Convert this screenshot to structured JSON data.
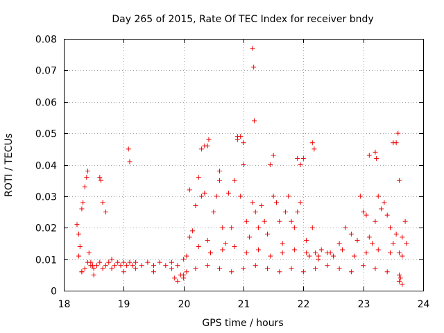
{
  "chart_data": {
    "type": "scatter",
    "title": "Day 265 of 2015, Rate Of TEC Index for receiver bndy",
    "xlabel": "GPS time / hours",
    "ylabel": "ROTI / TECUs",
    "xlim": [
      18,
      24
    ],
    "ylim": [
      0,
      0.08
    ],
    "xticks": [
      18,
      19,
      20,
      21,
      22,
      23,
      24
    ],
    "xtick_labels": [
      "18",
      "19",
      "20",
      "21",
      "22",
      "23",
      "24"
    ],
    "yticks": [
      0,
      0.01,
      0.02,
      0.03,
      0.04,
      0.05,
      0.06,
      0.07,
      0.08
    ],
    "ytick_labels": [
      "0",
      "0.01",
      "0.02",
      "0.03",
      "0.04",
      "0.05",
      "0.06",
      "0.07",
      "0.08"
    ],
    "grid": true,
    "marker": "plus",
    "color": "#ee0000",
    "series": [
      {
        "name": "ROTI",
        "x": [
          18.22,
          18.25,
          18.27,
          18.3,
          18.32,
          18.35,
          18.38,
          18.4,
          18.42,
          18.45,
          18.48,
          18.5,
          18.55,
          18.6,
          18.65,
          18.7,
          18.75,
          18.8,
          18.85,
          18.9,
          18.95,
          19.0,
          19.05,
          19.1,
          19.15,
          19.2,
          19.3,
          19.4,
          19.5,
          19.6,
          19.7,
          19.8,
          19.9,
          20.0,
          20.05,
          20.1,
          20.15,
          20.2,
          20.25,
          20.3,
          20.35,
          20.4,
          20.45,
          20.5,
          20.55,
          20.6,
          20.65,
          20.7,
          20.75,
          20.8,
          20.85,
          20.9,
          20.95,
          21.0,
          21.05,
          21.1,
          21.15,
          21.2,
          21.25,
          21.3,
          21.35,
          21.4,
          21.45,
          21.5,
          21.55,
          21.6,
          21.65,
          21.7,
          21.75,
          21.8,
          21.85,
          21.9,
          21.95,
          22.0,
          22.05,
          22.1,
          22.15,
          22.2,
          22.25,
          22.3,
          22.4,
          22.5,
          22.6,
          22.7,
          22.8,
          22.9,
          22.95,
          23.0,
          23.05,
          23.1,
          23.15,
          23.2,
          23.25,
          23.3,
          23.35,
          23.4,
          23.45,
          23.5,
          23.55,
          23.6,
          23.65,
          23.7,
          23.72,
          18.25,
          18.3,
          18.35,
          18.4,
          18.45,
          18.6,
          18.62,
          18.65,
          18.7,
          19.08,
          19.1,
          20.1,
          20.3,
          20.35,
          20.4,
          20.42,
          20.6,
          20.9,
          20.95,
          21.0,
          21.15,
          21.17,
          21.18,
          21.5,
          21.9,
          21.95,
          22.15,
          22.18,
          23.1,
          23.2,
          23.22,
          23.5,
          23.55,
          23.58,
          23.6,
          18.3,
          18.5,
          18.8,
          19.0,
          19.2,
          19.5,
          19.8,
          20.0,
          20.2,
          20.4,
          20.6,
          20.8,
          21.0,
          21.2,
          21.4,
          21.6,
          21.8,
          22.0,
          22.2,
          22.4,
          22.6,
          22.8,
          23.0,
          23.2,
          23.4,
          23.6,
          20.25,
          20.45,
          20.65,
          20.85,
          21.05,
          21.25,
          21.45,
          21.65,
          21.85,
          22.05,
          22.25,
          22.45,
          22.65,
          22.85,
          23.05,
          23.25,
          23.45,
          23.65,
          19.85,
          19.9,
          19.95,
          20.0,
          20.05,
          23.6,
          23.62,
          23.65
        ],
        "y": [
          0.021,
          0.018,
          0.014,
          0.026,
          0.028,
          0.033,
          0.036,
          0.038,
          0.012,
          0.009,
          0.008,
          0.007,
          0.008,
          0.009,
          0.007,
          0.008,
          0.009,
          0.01,
          0.008,
          0.009,
          0.008,
          0.009,
          0.008,
          0.009,
          0.008,
          0.009,
          0.008,
          0.009,
          0.008,
          0.009,
          0.008,
          0.009,
          0.008,
          0.01,
          0.011,
          0.017,
          0.019,
          0.027,
          0.036,
          0.03,
          0.031,
          0.016,
          0.012,
          0.025,
          0.03,
          0.035,
          0.02,
          0.015,
          0.031,
          0.02,
          0.035,
          0.048,
          0.03,
          0.04,
          0.022,
          0.017,
          0.028,
          0.025,
          0.02,
          0.027,
          0.022,
          0.018,
          0.04,
          0.03,
          0.028,
          0.022,
          0.015,
          0.025,
          0.03,
          0.022,
          0.02,
          0.025,
          0.028,
          0.042,
          0.016,
          0.011,
          0.02,
          0.012,
          0.01,
          0.013,
          0.012,
          0.011,
          0.015,
          0.02,
          0.018,
          0.016,
          0.03,
          0.025,
          0.024,
          0.017,
          0.015,
          0.022,
          0.03,
          0.026,
          0.028,
          0.024,
          0.02,
          0.015,
          0.018,
          0.012,
          0.017,
          0.022,
          0.015,
          0.011,
          0.006,
          0.007,
          0.009,
          0.008,
          0.036,
          0.035,
          0.028,
          0.025,
          0.045,
          0.041,
          0.032,
          0.045,
          0.046,
          0.046,
          0.048,
          0.038,
          0.049,
          0.049,
          0.047,
          0.077,
          0.071,
          0.054,
          0.043,
          0.042,
          0.04,
          0.047,
          0.045,
          0.043,
          0.044,
          0.042,
          0.047,
          0.047,
          0.05,
          0.035,
          0.006,
          0.005,
          0.007,
          0.006,
          0.007,
          0.006,
          0.007,
          0.005,
          0.007,
          0.008,
          0.007,
          0.006,
          0.007,
          0.008,
          0.007,
          0.006,
          0.007,
          0.006,
          0.007,
          0.008,
          0.007,
          0.006,
          0.008,
          0.007,
          0.006,
          0.005,
          0.014,
          0.012,
          0.013,
          0.014,
          0.012,
          0.013,
          0.011,
          0.012,
          0.013,
          0.012,
          0.011,
          0.012,
          0.013,
          0.011,
          0.012,
          0.013,
          0.012,
          0.011,
          0.004,
          0.003,
          0.005,
          0.004,
          0.006,
          0.003,
          0.004,
          0.002
        ]
      }
    ]
  }
}
